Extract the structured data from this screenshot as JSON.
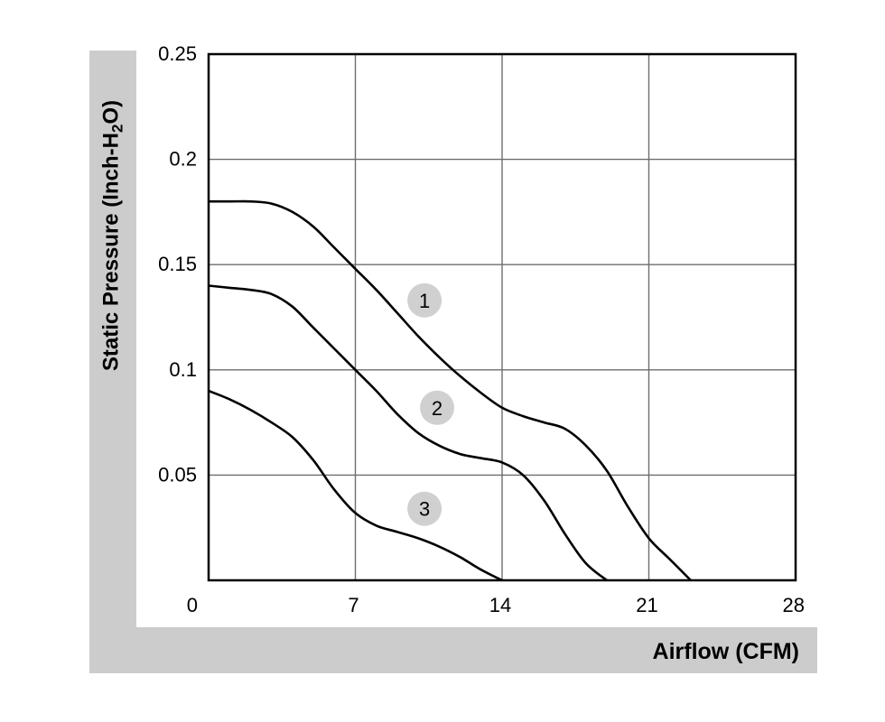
{
  "chart_data": {
    "type": "line",
    "xlabel": "Airflow (CFM)",
    "ylabel_main": "Static Pressure (Inch-H",
    "ylabel_sub": "2",
    "ylabel_tail": "O)",
    "xlim": [
      0,
      28
    ],
    "ylim": [
      0,
      0.25
    ],
    "x_ticks": [
      "0",
      "7",
      "14",
      "21",
      "28"
    ],
    "y_ticks": [
      "0.25",
      "0.2",
      "0.15",
      "0.1",
      "0.05"
    ],
    "grid": true,
    "series": [
      {
        "name": "1",
        "x": [
          0,
          1,
          2,
          3,
          4,
          5,
          6,
          7,
          8,
          9,
          10,
          11,
          12,
          13,
          14,
          15,
          16,
          17,
          18,
          19,
          20,
          21,
          22,
          23
        ],
        "y": [
          0.18,
          0.18,
          0.18,
          0.179,
          0.175,
          0.168,
          0.158,
          0.148,
          0.138,
          0.127,
          0.116,
          0.106,
          0.097,
          0.089,
          0.082,
          0.078,
          0.075,
          0.072,
          0.064,
          0.052,
          0.035,
          0.02,
          0.01,
          0.0
        ]
      },
      {
        "name": "2",
        "x": [
          0,
          1,
          2,
          3,
          4,
          5,
          6,
          7,
          8,
          9,
          10,
          11,
          12,
          13,
          14,
          15,
          16,
          17,
          18,
          19
        ],
        "y": [
          0.14,
          0.139,
          0.138,
          0.136,
          0.13,
          0.12,
          0.11,
          0.1,
          0.09,
          0.079,
          0.07,
          0.064,
          0.06,
          0.058,
          0.056,
          0.05,
          0.038,
          0.022,
          0.008,
          0.0
        ]
      },
      {
        "name": "3",
        "x": [
          0,
          1,
          2,
          3,
          4,
          5,
          6,
          7,
          8,
          9,
          10,
          11,
          12,
          13,
          14
        ],
        "y": [
          0.09,
          0.086,
          0.081,
          0.075,
          0.068,
          0.057,
          0.043,
          0.032,
          0.026,
          0.023,
          0.02,
          0.016,
          0.011,
          0.005,
          0.0
        ]
      }
    ],
    "curve_labels": [
      {
        "text": "1",
        "x": 10.3,
        "y": 0.133
      },
      {
        "text": "2",
        "x": 10.9,
        "y": 0.082
      },
      {
        "text": "3",
        "x": 10.3,
        "y": 0.034
      }
    ]
  }
}
